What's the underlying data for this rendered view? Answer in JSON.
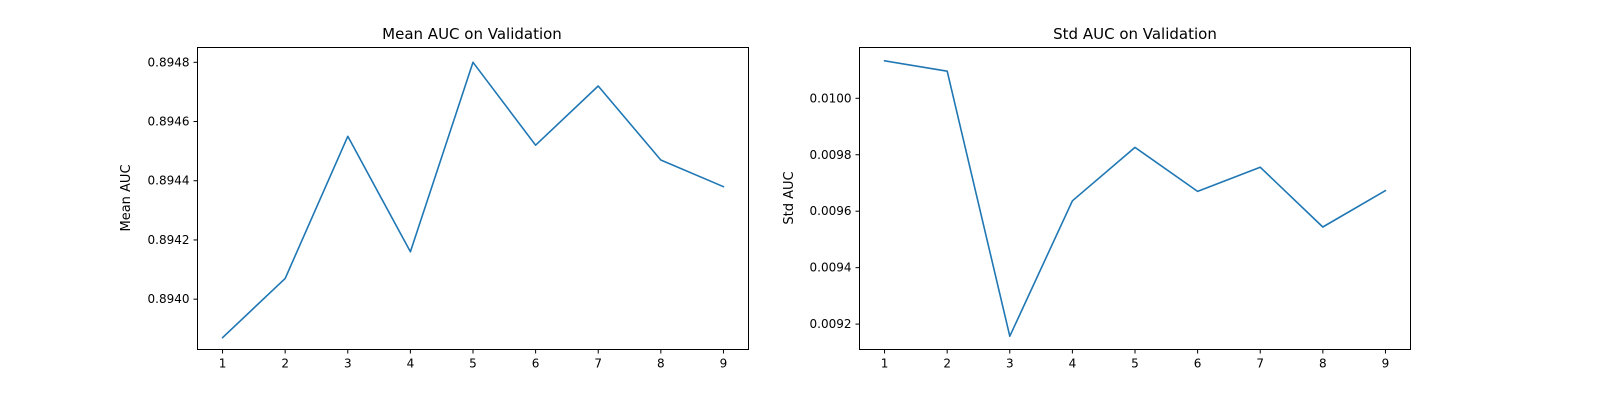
{
  "chart_data": [
    {
      "type": "line",
      "title": "Mean AUC on Validation",
      "xlabel": "",
      "ylabel": "Mean AUC",
      "x": [
        1,
        2,
        3,
        4,
        5,
        6,
        7,
        8,
        9
      ],
      "series": [
        {
          "values": [
            0.89387,
            0.89407,
            0.89455,
            0.89416,
            0.8948,
            0.89452,
            0.89472,
            0.89447,
            0.89438
          ],
          "color": "#1f77b4"
        }
      ],
      "xlim": [
        0.6,
        9.4
      ],
      "ylim": [
        0.89383,
        0.89485
      ],
      "xticks": [
        1,
        2,
        3,
        4,
        5,
        6,
        7,
        8,
        9
      ],
      "yticks": [
        0.894,
        0.8942,
        0.8944,
        0.8946,
        0.8948
      ],
      "ytick_labels": [
        "0.8940",
        "0.8942",
        "0.8944",
        "0.8946",
        "0.8948"
      ],
      "grid": false
    },
    {
      "type": "line",
      "title": "Std AUC on Validation",
      "xlabel": "",
      "ylabel": "Std AUC",
      "x": [
        1,
        2,
        3,
        4,
        5,
        6,
        7,
        8,
        9
      ],
      "series": [
        {
          "values": [
            0.010133,
            0.010096,
            0.009157,
            0.009637,
            0.009826,
            0.00967,
            0.009756,
            0.009544,
            0.009673
          ],
          "color": "#1f77b4"
        }
      ],
      "xlim": [
        0.6,
        9.4
      ],
      "ylim": [
        0.00911,
        0.01018
      ],
      "xticks": [
        1,
        2,
        3,
        4,
        5,
        6,
        7,
        8,
        9
      ],
      "yticks": [
        0.0092,
        0.0094,
        0.0096,
        0.0098,
        0.01
      ],
      "ytick_labels": [
        "0.0092",
        "0.0094",
        "0.0096",
        "0.0098",
        "0.0100"
      ],
      "grid": false
    }
  ]
}
